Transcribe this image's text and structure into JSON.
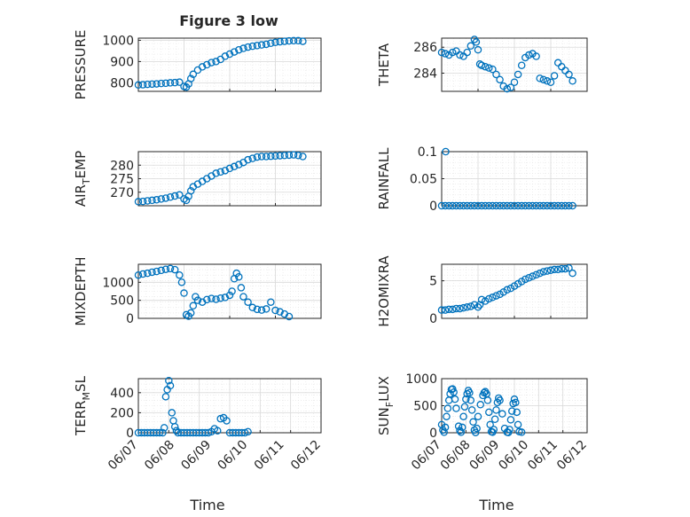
{
  "figure": {
    "title": "Figure 3 low"
  },
  "colors": {
    "series": "#0072bd",
    "grid": "#d9d9d9",
    "axis": "#262626"
  },
  "chart_data": [
    {
      "id": "pressure",
      "type": "scatter",
      "ylabel": "PRESSURE",
      "title": "Figure 3 low",
      "xlim": [
        0,
        4
      ],
      "ylim": [
        760,
        1010
      ],
      "yticks": [
        800,
        900,
        1000
      ],
      "yticklabels": [
        "800",
        "900",
        "1000"
      ],
      "x": [
        0,
        0.1,
        0.2,
        0.3,
        0.4,
        0.5,
        0.6,
        0.7,
        0.8,
        0.9,
        1.0,
        1.05,
        1.1,
        1.15,
        1.2,
        1.3,
        1.4,
        1.5,
        1.6,
        1.7,
        1.8,
        1.9,
        2.0,
        2.1,
        2.2,
        2.3,
        2.4,
        2.5,
        2.6,
        2.7,
        2.8,
        2.9,
        3.0,
        3.1,
        3.2,
        3.3,
        3.4,
        3.5,
        3.6
      ],
      "y": [
        790,
        791,
        793,
        794,
        795,
        797,
        798,
        800,
        801,
        803,
        783,
        780,
        795,
        820,
        840,
        860,
        875,
        885,
        895,
        900,
        910,
        925,
        935,
        945,
        955,
        962,
        968,
        972,
        975,
        978,
        981,
        986,
        990,
        993,
        995,
        997,
        998,
        998,
        995
      ]
    },
    {
      "id": "theta",
      "type": "scatter",
      "ylabel": "THETA",
      "xlim": [
        0,
        4
      ],
      "ylim": [
        282.6,
        286.7
      ],
      "yticks": [
        284,
        286
      ],
      "yticklabels": [
        "284",
        "286"
      ],
      "x": [
        0,
        0.1,
        0.2,
        0.3,
        0.4,
        0.5,
        0.6,
        0.7,
        0.8,
        0.9,
        0.95,
        1.0,
        1.05,
        1.1,
        1.2,
        1.3,
        1.4,
        1.5,
        1.6,
        1.7,
        1.8,
        1.9,
        2.0,
        2.1,
        2.2,
        2.3,
        2.4,
        2.5,
        2.6,
        2.7,
        2.8,
        2.9,
        3.0,
        3.1,
        3.2,
        3.3,
        3.4,
        3.5,
        3.6
      ],
      "y": [
        285.6,
        285.5,
        285.4,
        285.6,
        285.7,
        285.4,
        285.3,
        285.6,
        286.1,
        286.6,
        286.4,
        285.8,
        284.7,
        284.6,
        284.5,
        284.4,
        284.3,
        283.9,
        283.5,
        283.0,
        282.8,
        282.9,
        283.3,
        283.9,
        284.6,
        285.2,
        285.4,
        285.5,
        285.3,
        283.6,
        283.5,
        283.4,
        283.3,
        283.8,
        284.8,
        284.5,
        284.2,
        283.9,
        283.4
      ]
    },
    {
      "id": "air_temp",
      "type": "scatter",
      "ylabel": "AIR_TEMP",
      "ylabel_parts": {
        "pre": "AIR",
        "sub": "T",
        "post": "EMP"
      },
      "xlim": [
        0,
        4
      ],
      "ylim": [
        265,
        285
      ],
      "yticks": [
        270,
        275,
        280
      ],
      "yticklabels": [
        "270",
        "275",
        "280"
      ],
      "x": [
        0,
        0.1,
        0.2,
        0.3,
        0.4,
        0.5,
        0.6,
        0.7,
        0.8,
        0.9,
        1.0,
        1.05,
        1.1,
        1.15,
        1.2,
        1.3,
        1.4,
        1.5,
        1.6,
        1.7,
        1.8,
        1.9,
        2.0,
        2.1,
        2.2,
        2.3,
        2.4,
        2.5,
        2.6,
        2.7,
        2.8,
        2.9,
        3.0,
        3.1,
        3.2,
        3.3,
        3.4,
        3.5,
        3.6
      ],
      "y": [
        266.5,
        266.6,
        266.8,
        267.0,
        267.2,
        267.5,
        267.8,
        268.2,
        268.6,
        269.0,
        267.5,
        267.0,
        268.5,
        270.5,
        272.0,
        273.0,
        274.0,
        275.0,
        276.0,
        277.0,
        277.5,
        278.0,
        278.8,
        279.5,
        280.2,
        281.0,
        282.0,
        282.5,
        283.0,
        283.2,
        283.2,
        283.3,
        283.4,
        283.5,
        283.6,
        283.7,
        283.8,
        283.6,
        283.2
      ]
    },
    {
      "id": "rainfall",
      "type": "scatter",
      "ylabel": "RAINFALL",
      "xlim": [
        0,
        4
      ],
      "ylim": [
        0,
        0.1
      ],
      "yticks": [
        0,
        0.05,
        0.1
      ],
      "yticklabels": [
        "0",
        "0.05",
        "0.1"
      ],
      "x": [
        0,
        0.1,
        0.2,
        0.3,
        0.4,
        0.5,
        0.6,
        0.7,
        0.8,
        0.9,
        1.0,
        1.1,
        1.2,
        1.3,
        1.4,
        1.5,
        1.6,
        1.7,
        1.8,
        1.9,
        2.0,
        2.1,
        2.2,
        2.3,
        2.4,
        2.5,
        2.6,
        2.7,
        2.8,
        2.9,
        3.0,
        3.1,
        3.2,
        3.3,
        3.4,
        3.5,
        3.6,
        0.11
      ],
      "y": [
        0,
        0,
        0,
        0,
        0,
        0,
        0,
        0,
        0,
        0,
        0,
        0,
        0,
        0,
        0,
        0,
        0,
        0,
        0,
        0,
        0,
        0,
        0,
        0,
        0,
        0,
        0,
        0,
        0,
        0,
        0,
        0,
        0,
        0,
        0,
        0,
        0,
        0.1
      ]
    },
    {
      "id": "mixdepth",
      "type": "scatter",
      "ylabel": "MIXDEPTH",
      "xlim": [
        0,
        4
      ],
      "ylim": [
        0,
        1500
      ],
      "yticks": [
        0,
        500,
        1000
      ],
      "yticklabels": [
        "0",
        "500",
        "1000"
      ],
      "x": [
        0,
        0.1,
        0.2,
        0.3,
        0.4,
        0.5,
        0.6,
        0.7,
        0.8,
        0.9,
        0.95,
        1.0,
        1.05,
        1.1,
        1.15,
        1.2,
        1.25,
        1.3,
        1.4,
        1.5,
        1.6,
        1.7,
        1.8,
        1.9,
        2.0,
        2.05,
        2.1,
        2.15,
        2.2,
        2.25,
        2.3,
        2.4,
        2.5,
        2.6,
        2.7,
        2.8,
        2.9,
        3.0,
        3.1,
        3.2,
        3.3
      ],
      "y": [
        1200,
        1230,
        1250,
        1280,
        1300,
        1330,
        1360,
        1380,
        1350,
        1200,
        1000,
        700,
        100,
        60,
        150,
        350,
        600,
        500,
        450,
        520,
        550,
        530,
        560,
        580,
        640,
        750,
        1100,
        1250,
        1150,
        850,
        600,
        450,
        300,
        250,
        230,
        260,
        450,
        220,
        180,
        120,
        50
      ]
    },
    {
      "id": "h2omixra",
      "type": "scatter",
      "ylabel": "H2OMIXRA",
      "xlim": [
        0,
        4
      ],
      "ylim": [
        0,
        7.2
      ],
      "yticks": [
        0,
        5
      ],
      "yticklabels": [
        "0",
        "5"
      ],
      "x": [
        0,
        0.1,
        0.2,
        0.3,
        0.4,
        0.5,
        0.6,
        0.7,
        0.8,
        0.9,
        1.0,
        1.05,
        1.1,
        1.2,
        1.3,
        1.4,
        1.5,
        1.6,
        1.7,
        1.8,
        1.9,
        2.0,
        2.1,
        2.2,
        2.3,
        2.4,
        2.5,
        2.6,
        2.7,
        2.8,
        2.9,
        3.0,
        3.1,
        3.2,
        3.3,
        3.4,
        3.5,
        3.6
      ],
      "y": [
        1.1,
        1.1,
        1.2,
        1.2,
        1.3,
        1.3,
        1.4,
        1.5,
        1.6,
        1.8,
        1.5,
        1.8,
        2.5,
        2.3,
        2.6,
        2.8,
        3.0,
        3.2,
        3.5,
        3.8,
        4.0,
        4.3,
        4.6,
        4.9,
        5.2,
        5.4,
        5.6,
        5.8,
        6.0,
        6.2,
        6.3,
        6.4,
        6.5,
        6.5,
        6.6,
        6.6,
        6.7,
        6.0
      ]
    },
    {
      "id": "terr_msl",
      "type": "scatter",
      "ylabel": "TERR_MSL",
      "ylabel_parts": {
        "pre": "TERR",
        "sub": "M",
        "post": "SL"
      },
      "xlim": [
        0,
        6
      ],
      "ylim": [
        0,
        540
      ],
      "yticks": [
        0,
        200,
        400
      ],
      "yticklabels": [
        "0",
        "200",
        "400"
      ],
      "x": [
        0,
        0.1,
        0.2,
        0.3,
        0.4,
        0.5,
        0.6,
        0.7,
        0.8,
        0.85,
        0.9,
        0.95,
        1.0,
        1.05,
        1.1,
        1.15,
        1.2,
        1.25,
        1.3,
        1.4,
        1.5,
        1.6,
        1.7,
        1.8,
        1.9,
        2.0,
        2.1,
        2.2,
        2.3,
        2.4,
        2.5,
        2.6,
        2.7,
        2.8,
        2.9,
        3.0,
        3.1,
        3.2,
        3.3,
        3.4,
        3.5,
        3.6
      ],
      "y": [
        0,
        0,
        0,
        0,
        0,
        0,
        0,
        0,
        0,
        50,
        360,
        430,
        520,
        470,
        200,
        120,
        60,
        20,
        0,
        0,
        0,
        0,
        0,
        0,
        0,
        0,
        0,
        0,
        0,
        10,
        40,
        20,
        140,
        150,
        120,
        0,
        0,
        0,
        0,
        0,
        0,
        10
      ]
    },
    {
      "id": "sun_flux",
      "type": "scatter",
      "ylabel": "SUN_FLUX",
      "ylabel_parts": {
        "pre": "SUN",
        "sub": "F",
        "post": "LUX"
      },
      "xlim": [
        0,
        6
      ],
      "ylim": [
        0,
        1000
      ],
      "yticks": [
        0,
        500,
        1000
      ],
      "yticklabels": [
        "0",
        "500",
        "1000"
      ],
      "x": [
        0,
        0.05,
        0.1,
        0.15,
        0.2,
        0.25,
        0.3,
        0.35,
        0.4,
        0.45,
        0.5,
        0.55,
        0.6,
        0.7,
        0.75,
        0.8,
        0.85,
        0.9,
        0.95,
        1.0,
        1.05,
        1.1,
        1.15,
        1.2,
        1.25,
        1.3,
        1.35,
        1.4,
        1.45,
        1.5,
        1.6,
        1.7,
        1.75,
        1.8,
        1.85,
        1.9,
        1.95,
        2.0,
        2.05,
        2.1,
        2.15,
        2.2,
        2.25,
        2.3,
        2.35,
        2.4,
        2.5,
        2.6,
        2.7,
        2.75,
        2.8,
        2.85,
        2.9,
        2.95,
        3.0,
        3.05,
        3.1,
        3.15,
        3.2,
        3.3
      ],
      "y": [
        150,
        50,
        10,
        100,
        300,
        450,
        600,
        720,
        800,
        810,
        750,
        620,
        450,
        120,
        40,
        10,
        100,
        300,
        480,
        620,
        720,
        780,
        740,
        600,
        420,
        200,
        50,
        5,
        80,
        300,
        520,
        690,
        740,
        760,
        720,
        600,
        380,
        150,
        20,
        10,
        60,
        250,
        420,
        560,
        640,
        600,
        350,
        80,
        10,
        5,
        60,
        240,
        400,
        540,
        620,
        560,
        380,
        150,
        20,
        10
      ]
    }
  ],
  "xaxis": {
    "ticklabels": [
      "06/07",
      "06/08",
      "06/09",
      "06/10",
      "06/11",
      "06/12"
    ],
    "label": "Time"
  }
}
